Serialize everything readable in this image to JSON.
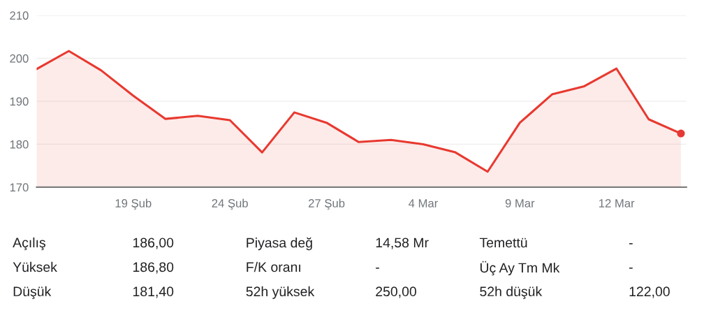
{
  "chart_data": {
    "type": "area",
    "categories": [
      null,
      null,
      null,
      "19 Şub",
      null,
      null,
      "24 Şub",
      null,
      null,
      "27 Şub",
      null,
      null,
      "4 Mar",
      null,
      null,
      "9 Mar",
      null,
      null,
      "12 Mar",
      null,
      null
    ],
    "series": [
      {
        "color": "#e8392f",
        "values": [
          197.5,
          201.7,
          197.2,
          191.3,
          185.9,
          186.6,
          185.6,
          178.1,
          187.4,
          185.0,
          180.5,
          181.0,
          180.0,
          178.1,
          173.6,
          185.0,
          191.6,
          193.5,
          197.6,
          185.8,
          182.5
        ]
      },
      {
        "type": "scatter",
        "color": "#e53935",
        "values": [
          null,
          null,
          null,
          null,
          null,
          null,
          null,
          null,
          null,
          null,
          null,
          null,
          null,
          null,
          null,
          null,
          null,
          null,
          null,
          null,
          182.5
        ]
      }
    ],
    "ylim": [
      170,
      210
    ],
    "yticks": [
      170,
      180,
      190,
      200,
      210
    ],
    "grid": "y",
    "annotations": [
      "Açılış",
      "186,00",
      "Piyasa değ",
      "14,58 Mr",
      "Temettü",
      "-",
      "Yüksek",
      "186,80",
      "F/K oranı",
      "-",
      "Üç Ay Tm Mk",
      "-",
      "Düşük",
      "181,40",
      "52h yüksek",
      "250,00",
      "52h düşük",
      "122,00"
    ]
  }
}
